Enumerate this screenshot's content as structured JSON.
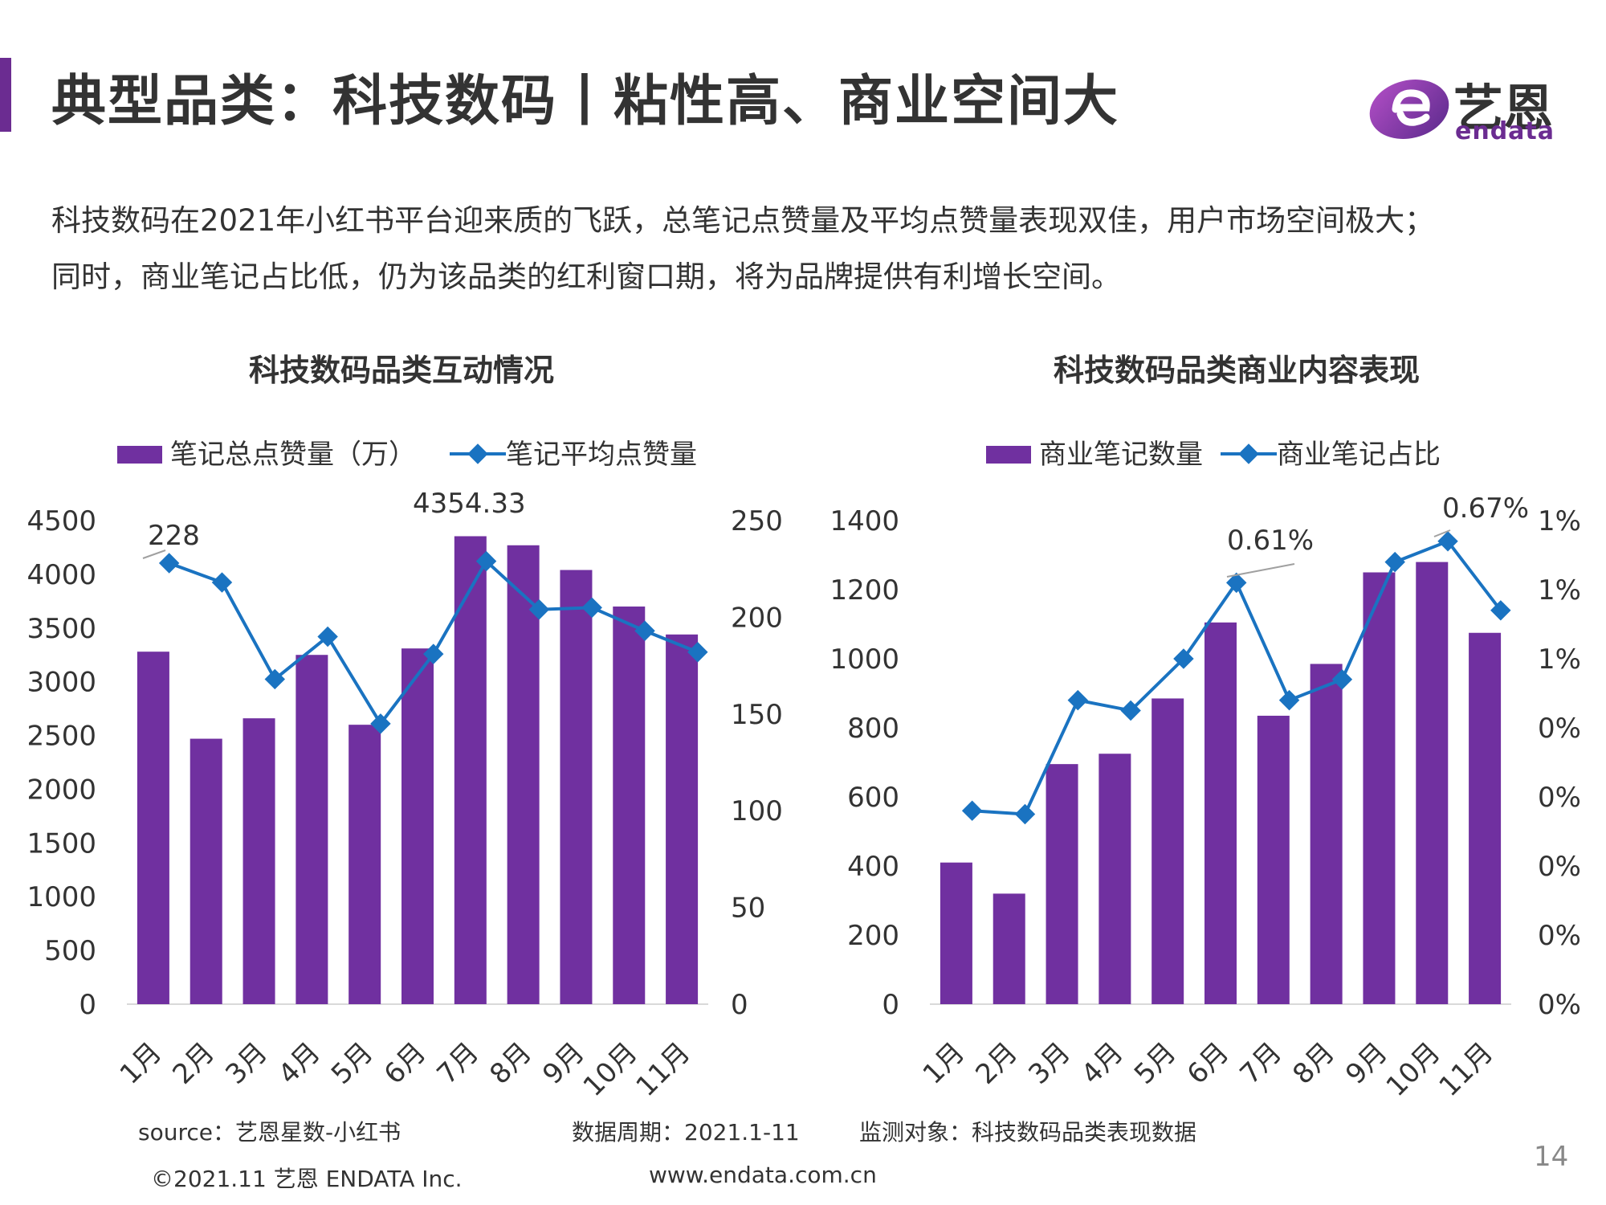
{
  "header": {
    "title": "典型品类：科技数码丨粘性高、商业空间大"
  },
  "logo": {
    "brand": "艺恩",
    "en": "endata"
  },
  "description": {
    "line1": "科技数码在2021年小红书平台迎来质的飞跃，总笔记点赞量及平均点赞量表现双佳，用户市场空间极大；",
    "line2": "同时，商业笔记占比低，仍为该品类的红利窗口期，将为品牌提供有利增长空间。"
  },
  "colors": {
    "bar": "#7030a0",
    "line": "#1a73c1",
    "accent": "#6b2c91"
  },
  "chart_data": [
    {
      "type": "bar+line",
      "title": "科技数码品类互动情况",
      "categories": [
        "1月",
        "2月",
        "3月",
        "4月",
        "5月",
        "6月",
        "7月",
        "8月",
        "9月",
        "10月",
        "11月"
      ],
      "series": [
        {
          "name": "笔记总点赞量（万）",
          "type": "bar",
          "axis": "left",
          "values": [
            3280,
            2470,
            2660,
            3250,
            2600,
            3310,
            4354.33,
            4270,
            4040,
            3700,
            3440
          ]
        },
        {
          "name": "笔记平均点赞量",
          "type": "line",
          "axis": "right",
          "values": [
            228,
            218,
            168,
            190,
            145,
            181,
            229,
            204,
            205,
            193,
            182
          ]
        }
      ],
      "annotations": [
        "228",
        "4354.33"
      ],
      "ylim_left": [
        0,
        4500
      ],
      "yticks_left": [
        "0",
        "500",
        "1000",
        "1500",
        "2000",
        "2500",
        "3000",
        "3500",
        "4000",
        "4500"
      ],
      "ylim_right": [
        0,
        250
      ],
      "yticks_right": [
        "0",
        "50",
        "100",
        "150",
        "200",
        "250"
      ]
    },
    {
      "type": "bar+line",
      "title": "科技数码品类商业内容表现",
      "categories": [
        "1月",
        "2月",
        "3月",
        "4月",
        "5月",
        "6月",
        "7月",
        "8月",
        "9月",
        "10月",
        "11月"
      ],
      "series": [
        {
          "name": "商业笔记数量",
          "type": "bar",
          "axis": "left",
          "values": [
            410,
            320,
            695,
            725,
            885,
            1105,
            835,
            985,
            1250,
            1280,
            1075
          ]
        },
        {
          "name": "商业笔记占比",
          "type": "line",
          "axis": "right",
          "values": [
            0.28,
            0.275,
            0.44,
            0.425,
            0.5,
            0.61,
            0.44,
            0.47,
            0.64,
            0.67,
            0.57
          ]
        }
      ],
      "annotations": [
        "0.61%",
        "0.67%"
      ],
      "ylim_left": [
        0,
        1400
      ],
      "yticks_left": [
        "0",
        "200",
        "400",
        "600",
        "800",
        "1000",
        "1200",
        "1400"
      ],
      "ylim_right": [
        0,
        0.7
      ],
      "yticks_right": [
        "0%",
        "0%",
        "0%",
        "0%",
        "0%",
        "1%",
        "1%",
        "1%"
      ]
    }
  ],
  "footer": {
    "source": "source：艺恩星数-小红书",
    "period": "数据周期：2021.1-11",
    "monitor": "监测对象：科技数码品类表现数据",
    "copyright": "©2021.11 艺恩 ENDATA Inc.",
    "website": "www.endata.com.cn",
    "page": "14"
  }
}
